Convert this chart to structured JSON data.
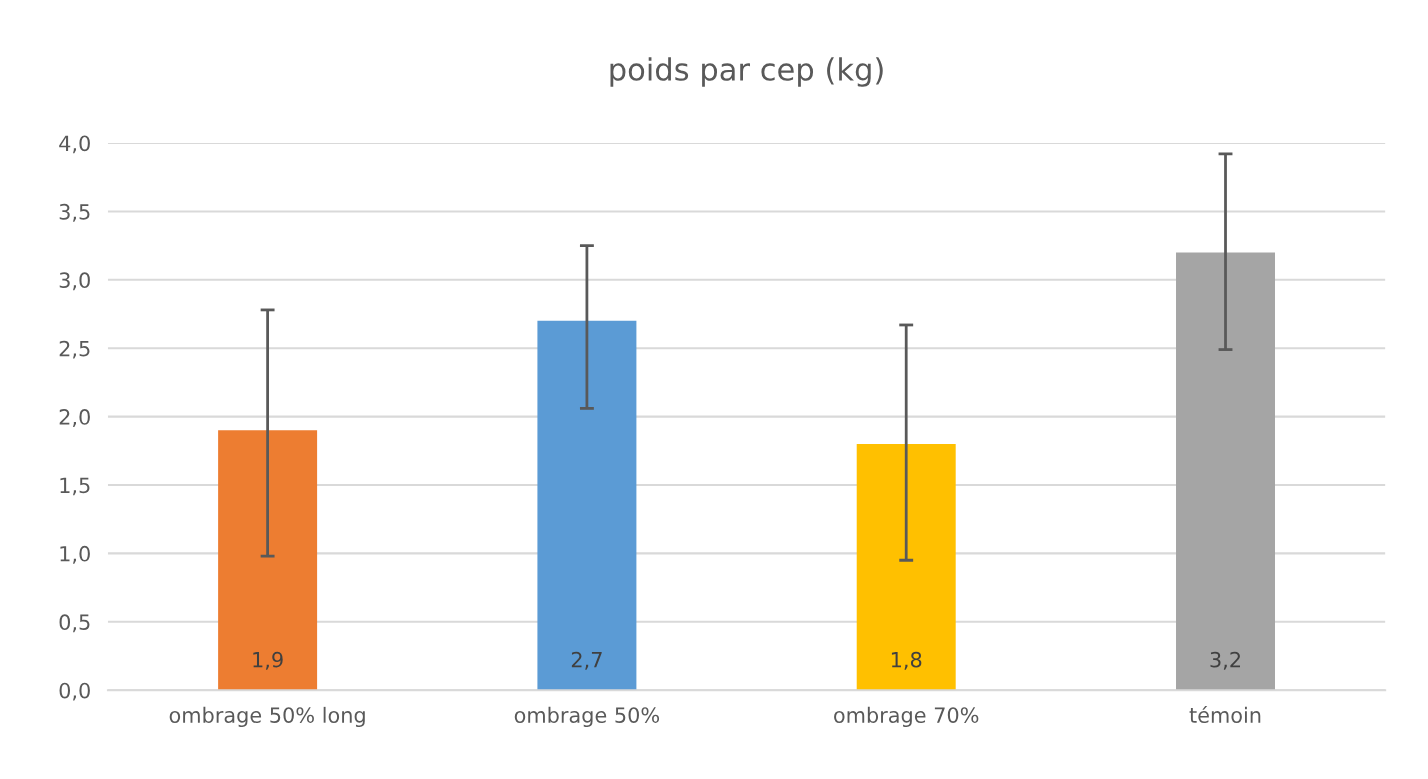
{
  "chart_data": {
    "type": "bar",
    "title": "poids par cep (kg)",
    "categories": [
      "ombrage 50% long",
      "ombrage 50%",
      "ombrage 70%",
      "témoin"
    ],
    "values": [
      1.9,
      2.7,
      1.8,
      3.2
    ],
    "colors": [
      "#ed7d31",
      "#5b9bd5",
      "#ffc000",
      "#a5a5a5"
    ],
    "value_labels": [
      "1,9",
      "2,7",
      "1,8",
      "3,2"
    ],
    "errors": [
      [
        0.98,
        2.78
      ],
      [
        2.06,
        3.25
      ],
      [
        0.95,
        2.67
      ],
      [
        2.49,
        3.92
      ]
    ],
    "ylim": [
      0,
      4
    ],
    "yticks": [
      {
        "value": 0,
        "label": "0,0"
      },
      {
        "value": 0.5,
        "label": "0,5"
      },
      {
        "value": 1,
        "label": "1,0"
      },
      {
        "value": 1.5,
        "label": "1,5"
      },
      {
        "value": 2,
        "label": "2,0"
      },
      {
        "value": 2.5,
        "label": "2,5"
      },
      {
        "value": 3,
        "label": "3,0"
      },
      {
        "value": 3.5,
        "label": "3,5"
      },
      {
        "value": 4,
        "label": "4,0"
      }
    ],
    "grid": "y"
  }
}
